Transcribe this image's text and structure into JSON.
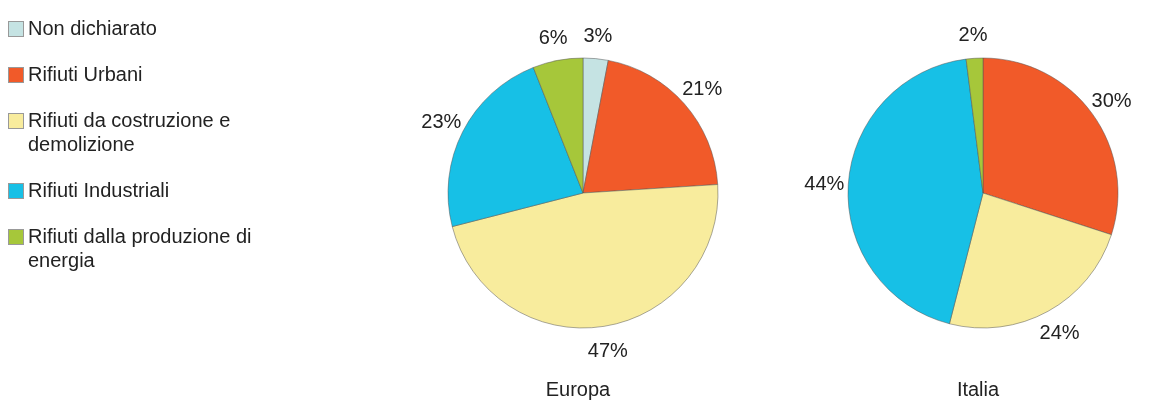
{
  "chart_data": [
    {
      "type": "pie",
      "title": "Europa",
      "legend": "left",
      "categories": [
        "Non dichiarato",
        "Rifiuti Urbani",
        "Rifiuti da costruzione e demolizione",
        "Rifiuti Industriali",
        "Rifiuti dalla produzione di energia"
      ],
      "values": [
        3,
        21,
        47,
        23,
        6
      ],
      "value_labels": [
        "3%",
        "21%",
        "47%",
        "23%",
        "6%"
      ],
      "colors": [
        "#c5e3e3",
        "#f15a29",
        "#f8ec9d",
        "#17c0e6",
        "#a6c73a"
      ]
    },
    {
      "type": "pie",
      "title": "Italia",
      "categories": [
        null,
        null,
        null,
        null
      ],
      "values": [
        30,
        24,
        44,
        2
      ],
      "value_labels": [
        "30%",
        "24%",
        "44%",
        "2%"
      ],
      "colors": [
        "#f15a29",
        "#f8ec9d",
        "#17c0e6",
        "#a6c73a"
      ]
    }
  ]
}
